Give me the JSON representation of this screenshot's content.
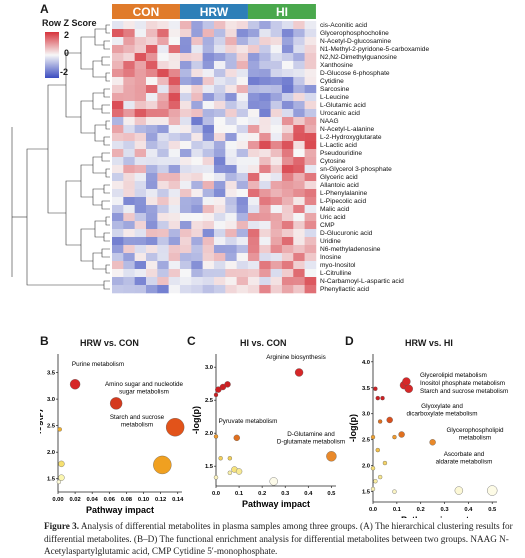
{
  "panel_a": {
    "letter": "A",
    "legend_title": "Row Z Score",
    "legend_ticks": [
      "2",
      "0",
      "-2"
    ],
    "groups": [
      {
        "label": "CON",
        "color": "#e07b2b"
      },
      {
        "label": "HRW",
        "color": "#2e7fb8"
      },
      {
        "label": "HI",
        "color": "#4aa84d"
      }
    ],
    "metabolites": [
      "cis-Aconitic acid",
      "Glycerophosphocholine",
      "N-Acetyl-D-glucosamine",
      "N1-Methyl-2-pyridone-5-carboxamide",
      "N2,N2-Dimethylguanosine",
      "Xanthosine",
      "D-Glucose 6-phosphate",
      "Cytidine",
      "Sarcosine",
      "L-Leucine",
      "L-Glutamic acid",
      "Urocanic acid",
      "NAAG",
      "N-Acetyl-L-alanine",
      "L-2-Hydroxyglutarate",
      "L-Lactic acid",
      "Pseudouridine",
      "Cytosine",
      "sn-Glycerol 3-phosphate",
      "Glyceric acid",
      "Allantoic acid",
      "L-Phenylalanine",
      "L-Pipecolic acid",
      "Malic acid",
      "Uric acid",
      "CMP",
      "D-Glucuronic acid",
      "Uridine",
      "N6-methyladenosine",
      "Inosine",
      "myo-Inositol",
      "L-Citrulline",
      "N-Carbamoyl-L-aspartic acid",
      "Phenyllactic acid"
    ]
  },
  "panel_b": {
    "letter": "B",
    "title": "HRW vs. CON",
    "xlabel": "Pathway impact",
    "ylabel": "-log(p)",
    "xticks": [
      "0.00",
      "0.02",
      "0.04",
      "0.06",
      "0.08",
      "0.10",
      "0.12",
      "0.14"
    ],
    "yticks": [
      "3.5",
      "3.0",
      "2.5",
      "2.0",
      "1.5"
    ],
    "annotations": [
      "Purine metabolism",
      "Amino sugar and nucleotide sugar metabolism",
      "Starch and sucrose metabolism"
    ]
  },
  "panel_c": {
    "letter": "C",
    "title": "HI vs. CON",
    "xlabel": "Pathway impact",
    "ylabel": "-log(p)",
    "xticks": [
      "0.0",
      "0.1",
      "0.2",
      "0.3",
      "0.4",
      "0.5"
    ],
    "yticks": [
      "3.0",
      "2.5",
      "2.0",
      "1.5"
    ],
    "annotations": [
      "Arginine biosynthesis",
      "Pyruvate metabolism",
      "D-Glutamine and D-glutamate metabolism"
    ]
  },
  "panel_d": {
    "letter": "D",
    "title": "HRW vs. HI",
    "xlabel": "Pathway impact",
    "ylabel": "-log(p)",
    "xticks": [
      "0.0",
      "0.1",
      "0.2",
      "0.3",
      "0.4",
      "0.5"
    ],
    "yticks": [
      "4.0",
      "3.5",
      "3.0",
      "2.5",
      "2.0",
      "1.5"
    ],
    "annotations": [
      "Glycerolipid metabolism",
      "Inositol phosphate metabolism",
      "Starch and sucrose metabolism",
      "Glyoxylate and dicarboxylate metabolism",
      "Glycerophospholipid metabolism",
      "Ascorbate and aldarate metabolism"
    ]
  },
  "caption": {
    "label": "Figure 3.",
    "text": "Analysis of differential metabolites in plasma samples among three groups. (A) The hierarchical clustering results for differential metabolites. (B–D) The functional enrichment analysis for differential metabolites between two groups. NAAG N-Acetylaspartylglutamic acid, CMP Cytidine 5′-monophosphate."
  },
  "chart_data": [
    {
      "type": "heatmap",
      "title": "",
      "columns_groups": [
        "CON",
        "HRW",
        "HI"
      ],
      "columns_per_group": 6,
      "rows": [
        "cis-Aconitic acid",
        "Glycerophosphocholine",
        "N-Acetyl-D-glucosamine",
        "N1-Methyl-2-pyridone-5-carboxamide",
        "N2,N2-Dimethylguanosine",
        "Xanthosine",
        "D-Glucose 6-phosphate",
        "Cytidine",
        "Sarcosine",
        "L-Leucine",
        "L-Glutamic acid",
        "Urocanic acid",
        "NAAG",
        "N-Acetyl-L-alanine",
        "L-2-Hydroxyglutarate",
        "L-Lactic acid",
        "Pseudouridine",
        "Cytosine",
        "sn-Glycerol 3-phosphate",
        "Glyceric acid",
        "Allantoic acid",
        "L-Phenylalanine",
        "L-Pipecolic acid",
        "Malic acid",
        "Uric acid",
        "CMP",
        "D-Glucuronic acid",
        "Uridine",
        "N6-methyladenosine",
        "Inosine",
        "myo-Inositol",
        "L-Citrulline",
        "N-Carbamoyl-L-aspartic acid",
        "Phenyllactic acid"
      ],
      "scale": {
        "min": -2,
        "max": 2,
        "label": "Row Z Score"
      },
      "colors": {
        "low": "#3b4cc0",
        "mid": "#f7f7f7",
        "high": "#d6333c"
      }
    },
    {
      "type": "scatter",
      "title": "HRW vs. CON",
      "xlabel": "Pathway impact",
      "ylabel": "-log(p)",
      "xlim": [
        0,
        0.145
      ],
      "ylim": [
        1.25,
        3.85
      ],
      "points": [
        {
          "x": 0.02,
          "y": 3.28,
          "size": 5,
          "color": "#d62728",
          "label": "Purine metabolism"
        },
        {
          "x": 0.068,
          "y": 2.92,
          "size": 6,
          "color": "#d43a1e",
          "label": "Amino sugar and nucleotide sugar metabolism"
        },
        {
          "x": 0.137,
          "y": 2.47,
          "size": 9,
          "color": "#e2531a",
          "label": "Starch and sucrose metabolism"
        },
        {
          "x": 0.122,
          "y": 1.76,
          "size": 9,
          "color": "#f0a020",
          "label": ""
        },
        {
          "x": 0.002,
          "y": 2.43,
          "size": 2,
          "color": "#f0b030",
          "label": ""
        },
        {
          "x": 0.004,
          "y": 1.78,
          "size": 3,
          "color": "#f6e070",
          "label": ""
        },
        {
          "x": 0.004,
          "y": 1.52,
          "size": 3,
          "color": "#fbf6b0",
          "label": ""
        },
        {
          "x": 0.001,
          "y": 1.44,
          "size": 2,
          "color": "#fdfad8",
          "label": ""
        }
      ]
    },
    {
      "type": "scatter",
      "title": "HI vs. CON",
      "xlabel": "Pathway impact",
      "ylabel": "-log(p)",
      "xlim": [
        0,
        0.52
      ],
      "ylim": [
        1.2,
        3.2
      ],
      "points": [
        {
          "x": 0.36,
          "y": 2.92,
          "size": 4,
          "color": "#d62728",
          "label": "Arginine biosynthesis"
        },
        {
          "x": 0.01,
          "y": 2.66,
          "size": 3,
          "color": "#cc1f22",
          "label": ""
        },
        {
          "x": 0.03,
          "y": 2.7,
          "size": 3,
          "color": "#cc1f22",
          "label": ""
        },
        {
          "x": 0.05,
          "y": 2.74,
          "size": 3,
          "color": "#cc1f22",
          "label": ""
        },
        {
          "x": 0.0,
          "y": 2.58,
          "size": 2,
          "color": "#cc1f22",
          "label": ""
        },
        {
          "x": 0.09,
          "y": 1.93,
          "size": 3,
          "color": "#e0701f",
          "label": "Pyruvate metabolism"
        },
        {
          "x": 0.5,
          "y": 1.65,
          "size": 5,
          "color": "#e9892a",
          "label": "D-Glutamine and D-glutamate metabolism"
        },
        {
          "x": 0.0,
          "y": 1.95,
          "size": 2,
          "color": "#ef9a2e",
          "label": ""
        },
        {
          "x": 0.02,
          "y": 1.62,
          "size": 2,
          "color": "#f3d05a",
          "label": ""
        },
        {
          "x": 0.06,
          "y": 1.62,
          "size": 2,
          "color": "#f3d05a",
          "label": ""
        },
        {
          "x": 0.08,
          "y": 1.45,
          "size": 3,
          "color": "#f6e27c",
          "label": ""
        },
        {
          "x": 0.1,
          "y": 1.42,
          "size": 3,
          "color": "#f8ea94",
          "label": ""
        },
        {
          "x": 0.06,
          "y": 1.4,
          "size": 2,
          "color": "#f9efa8",
          "label": ""
        },
        {
          "x": 0.0,
          "y": 1.33,
          "size": 2,
          "color": "#fbf3bf",
          "label": ""
        },
        {
          "x": 0.25,
          "y": 1.27,
          "size": 4,
          "color": "#fdfbea",
          "label": ""
        }
      ]
    },
    {
      "type": "scatter",
      "title": "HRW vs. HI",
      "xlabel": "Pathway impact",
      "ylabel": "-log(p)",
      "xlim": [
        0,
        0.52
      ],
      "ylim": [
        1.3,
        4.15
      ],
      "points": [
        {
          "x": 0.13,
          "y": 3.55,
          "size": 4,
          "color": "#d62728",
          "label": "Glycerolipid metabolism"
        },
        {
          "x": 0.14,
          "y": 3.62,
          "size": 4,
          "color": "#d62728",
          "label": "Inositol phosphate metabolism"
        },
        {
          "x": 0.15,
          "y": 3.48,
          "size": 4,
          "color": "#d62728",
          "label": "Starch and sucrose metabolism"
        },
        {
          "x": 0.01,
          "y": 3.48,
          "size": 2,
          "color": "#cc1f22",
          "label": ""
        },
        {
          "x": 0.02,
          "y": 3.3,
          "size": 2,
          "color": "#cc1f22",
          "label": ""
        },
        {
          "x": 0.04,
          "y": 3.3,
          "size": 2,
          "color": "#cc1f22",
          "label": ""
        },
        {
          "x": 0.07,
          "y": 2.88,
          "size": 3,
          "color": "#d8501e",
          "label": "Glyoxylate and dicarboxylate metabolism"
        },
        {
          "x": 0.12,
          "y": 2.6,
          "size": 3,
          "color": "#e0701f",
          "label": "Glycerophospholipid metabolism"
        },
        {
          "x": 0.03,
          "y": 2.85,
          "size": 2,
          "color": "#e0701f",
          "label": ""
        },
        {
          "x": 0.25,
          "y": 2.45,
          "size": 3,
          "color": "#e9892a",
          "label": "Ascorbate and aldarate metabolism"
        },
        {
          "x": 0.09,
          "y": 2.55,
          "size": 2,
          "color": "#ef9a2e",
          "label": ""
        },
        {
          "x": 0.0,
          "y": 2.55,
          "size": 2,
          "color": "#f0a232",
          "label": ""
        },
        {
          "x": 0.02,
          "y": 2.3,
          "size": 2,
          "color": "#f3c04a",
          "label": ""
        },
        {
          "x": 0.05,
          "y": 2.05,
          "size": 2,
          "color": "#f5d468",
          "label": ""
        },
        {
          "x": 0.0,
          "y": 1.95,
          "size": 2,
          "color": "#f6de7a",
          "label": ""
        },
        {
          "x": 0.03,
          "y": 1.78,
          "size": 2,
          "color": "#f8e68e",
          "label": ""
        },
        {
          "x": 0.01,
          "y": 1.7,
          "size": 2,
          "color": "#f9eca2",
          "label": ""
        },
        {
          "x": 0.0,
          "y": 1.55,
          "size": 2,
          "color": "#faf1b6",
          "label": ""
        },
        {
          "x": 0.09,
          "y": 1.5,
          "size": 2,
          "color": "#fbf4c4",
          "label": ""
        },
        {
          "x": 0.36,
          "y": 1.52,
          "size": 4,
          "color": "#fcf8d6",
          "label": ""
        },
        {
          "x": 0.5,
          "y": 1.52,
          "size": 5,
          "color": "#fdfbe6",
          "label": ""
        }
      ]
    }
  ]
}
